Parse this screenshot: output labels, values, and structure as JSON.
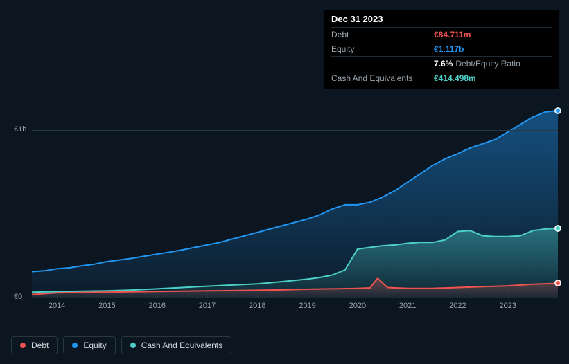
{
  "colors": {
    "background": "#0b1620",
    "grid": "#2a3640",
    "axis_text": "#9aa4ac",
    "debt": "#ef5350",
    "equity": "#2196f3",
    "cash": "#4dd0c7",
    "tooltip_bg": "#000000"
  },
  "tooltip": {
    "date": "Dec 31 2023",
    "rows": [
      {
        "label": "Debt",
        "value": "€84.711m",
        "color": "#ef5350"
      },
      {
        "label": "Equity",
        "value": "€1.117b",
        "color": "#2196f3"
      },
      {
        "label": "",
        "value": "7.6%",
        "suffix": "Debt/Equity Ratio",
        "color": "#ffffff"
      },
      {
        "label": "Cash And Equivalents",
        "value": "€414.498m",
        "color": "#4dd0c7"
      }
    ]
  },
  "chart": {
    "type": "area",
    "xlim": [
      2013.5,
      2024.0
    ],
    "ylim": [
      0,
      1200
    ],
    "y_ticks": [
      {
        "v": 0,
        "label": "€0"
      },
      {
        "v": 1000,
        "label": "€1b"
      }
    ],
    "x_ticks": [
      2014,
      2015,
      2016,
      2017,
      2018,
      2019,
      2020,
      2021,
      2022,
      2023
    ],
    "series": {
      "equity": {
        "name": "Equity",
        "color": "#2196f3",
        "fill_opacity_top": 0.45,
        "fill_opacity_bottom": 0.05,
        "line_width": 2,
        "points": [
          [
            2013.5,
            155
          ],
          [
            2013.75,
            160
          ],
          [
            2014.0,
            172
          ],
          [
            2014.25,
            178
          ],
          [
            2014.5,
            190
          ],
          [
            2014.75,
            200
          ],
          [
            2015.0,
            215
          ],
          [
            2015.25,
            225
          ],
          [
            2015.5,
            235
          ],
          [
            2015.75,
            248
          ],
          [
            2016.0,
            260
          ],
          [
            2016.25,
            272
          ],
          [
            2016.5,
            285
          ],
          [
            2016.75,
            300
          ],
          [
            2017.0,
            315
          ],
          [
            2017.25,
            330
          ],
          [
            2017.5,
            350
          ],
          [
            2017.75,
            370
          ],
          [
            2018.0,
            390
          ],
          [
            2018.25,
            410
          ],
          [
            2018.5,
            430
          ],
          [
            2018.75,
            450
          ],
          [
            2019.0,
            470
          ],
          [
            2019.25,
            495
          ],
          [
            2019.5,
            530
          ],
          [
            2019.75,
            555
          ],
          [
            2020.0,
            555
          ],
          [
            2020.25,
            570
          ],
          [
            2020.5,
            600
          ],
          [
            2020.75,
            640
          ],
          [
            2021.0,
            690
          ],
          [
            2021.25,
            740
          ],
          [
            2021.5,
            790
          ],
          [
            2021.75,
            830
          ],
          [
            2022.0,
            860
          ],
          [
            2022.25,
            895
          ],
          [
            2022.5,
            920
          ],
          [
            2022.75,
            945
          ],
          [
            2023.0,
            990
          ],
          [
            2023.25,
            1035
          ],
          [
            2023.5,
            1080
          ],
          [
            2023.75,
            1110
          ],
          [
            2024.0,
            1117
          ]
        ]
      },
      "cash": {
        "name": "Cash And Equivalents",
        "color": "#4dd0c7",
        "fill_opacity_top": 0.4,
        "fill_opacity_bottom": 0.05,
        "line_width": 2,
        "points": [
          [
            2013.5,
            32
          ],
          [
            2014.0,
            35
          ],
          [
            2014.5,
            38
          ],
          [
            2015.0,
            40
          ],
          [
            2015.5,
            45
          ],
          [
            2016.0,
            52
          ],
          [
            2016.5,
            60
          ],
          [
            2017.0,
            68
          ],
          [
            2017.5,
            75
          ],
          [
            2018.0,
            82
          ],
          [
            2018.5,
            95
          ],
          [
            2019.0,
            110
          ],
          [
            2019.25,
            120
          ],
          [
            2019.5,
            135
          ],
          [
            2019.75,
            165
          ],
          [
            2020.0,
            290
          ],
          [
            2020.25,
            300
          ],
          [
            2020.5,
            310
          ],
          [
            2020.75,
            315
          ],
          [
            2021.0,
            325
          ],
          [
            2021.25,
            330
          ],
          [
            2021.5,
            330
          ],
          [
            2021.75,
            345
          ],
          [
            2022.0,
            395
          ],
          [
            2022.25,
            400
          ],
          [
            2022.5,
            370
          ],
          [
            2022.75,
            365
          ],
          [
            2023.0,
            365
          ],
          [
            2023.25,
            370
          ],
          [
            2023.5,
            400
          ],
          [
            2023.75,
            410
          ],
          [
            2024.0,
            414
          ]
        ]
      },
      "debt": {
        "name": "Debt",
        "color": "#ef5350",
        "fill_opacity_top": 0.35,
        "fill_opacity_bottom": 0.05,
        "line_width": 2,
        "points": [
          [
            2013.5,
            18
          ],
          [
            2014.0,
            28
          ],
          [
            2014.5,
            30
          ],
          [
            2015.0,
            32
          ],
          [
            2015.5,
            34
          ],
          [
            2016.0,
            36
          ],
          [
            2016.5,
            38
          ],
          [
            2017.0,
            40
          ],
          [
            2017.5,
            42
          ],
          [
            2018.0,
            44
          ],
          [
            2018.5,
            46
          ],
          [
            2019.0,
            50
          ],
          [
            2019.5,
            52
          ],
          [
            2020.0,
            55
          ],
          [
            2020.25,
            58
          ],
          [
            2020.4,
            115
          ],
          [
            2020.6,
            60
          ],
          [
            2021.0,
            55
          ],
          [
            2021.5,
            55
          ],
          [
            2022.0,
            60
          ],
          [
            2022.5,
            65
          ],
          [
            2023.0,
            70
          ],
          [
            2023.5,
            80
          ],
          [
            2024.0,
            85
          ]
        ]
      }
    }
  },
  "legend": {
    "items": [
      {
        "key": "debt",
        "label": "Debt",
        "color": "#ef5350"
      },
      {
        "key": "equity",
        "label": "Equity",
        "color": "#2196f3"
      },
      {
        "key": "cash",
        "label": "Cash And Equivalents",
        "color": "#4dd0c7"
      }
    ]
  }
}
